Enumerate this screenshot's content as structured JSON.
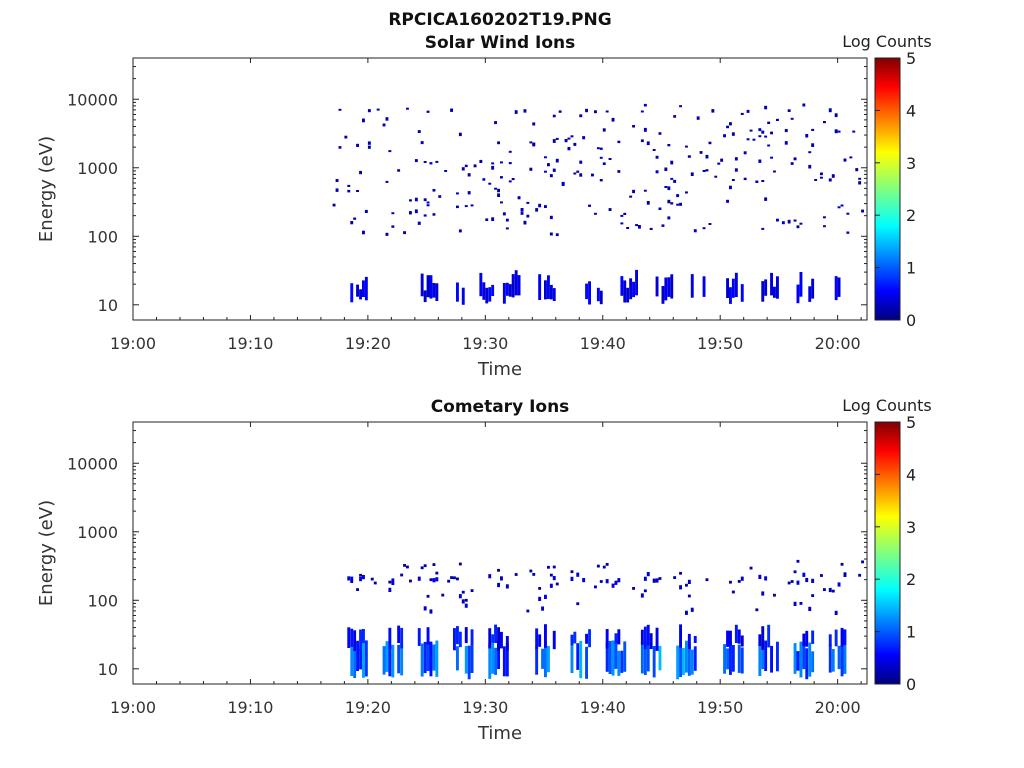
{
  "figure_title": "RPCICA160202T19.PNG",
  "chart_data": [
    {
      "type": "heatmap",
      "title": "Solar Wind Ions",
      "xlabel": "Time",
      "ylabel": "Energy (eV)",
      "x_ticks": [
        "19:00",
        "19:10",
        "19:20",
        "19:30",
        "19:40",
        "19:50",
        "20:00"
      ],
      "x_range_minutes": [
        0,
        62.5
      ],
      "y_scale": "log",
      "y_ticks": [
        10,
        100,
        1000,
        10000
      ],
      "ylim": [
        6,
        40000
      ],
      "colorbar": {
        "label": "Log Counts",
        "range": [
          0,
          5
        ],
        "ticks": [
          0,
          1,
          2,
          3,
          4,
          5
        ]
      },
      "data_start": "19:17",
      "band_low_times": [
        "19:19",
        "19:25",
        "19:28",
        "19:30",
        "19:32",
        "19:35",
        "19:39",
        "19:42",
        "19:45",
        "19:48",
        "19:51",
        "19:54",
        "19:57",
        "20:00"
      ]
    },
    {
      "type": "heatmap",
      "title": "Cometary Ions",
      "xlabel": "Time",
      "ylabel": "Energy (eV)",
      "x_ticks": [
        "19:00",
        "19:10",
        "19:20",
        "19:30",
        "19:40",
        "19:50",
        "20:00"
      ],
      "x_range_minutes": [
        0,
        62.5
      ],
      "y_scale": "log",
      "y_ticks": [
        10,
        100,
        1000,
        10000
      ],
      "ylim": [
        6,
        40000
      ],
      "colorbar": {
        "label": "Log Counts",
        "range": [
          0,
          5
        ],
        "ticks": [
          0,
          1,
          2,
          3,
          4,
          5
        ]
      },
      "data_start": "19:18",
      "pulse_times": [
        "19:19",
        "19:22",
        "19:25",
        "19:28",
        "19:31",
        "19:35",
        "19:38",
        "19:41",
        "19:44",
        "19:47",
        "19:51",
        "19:54",
        "19:57",
        "20:00"
      ]
    }
  ]
}
